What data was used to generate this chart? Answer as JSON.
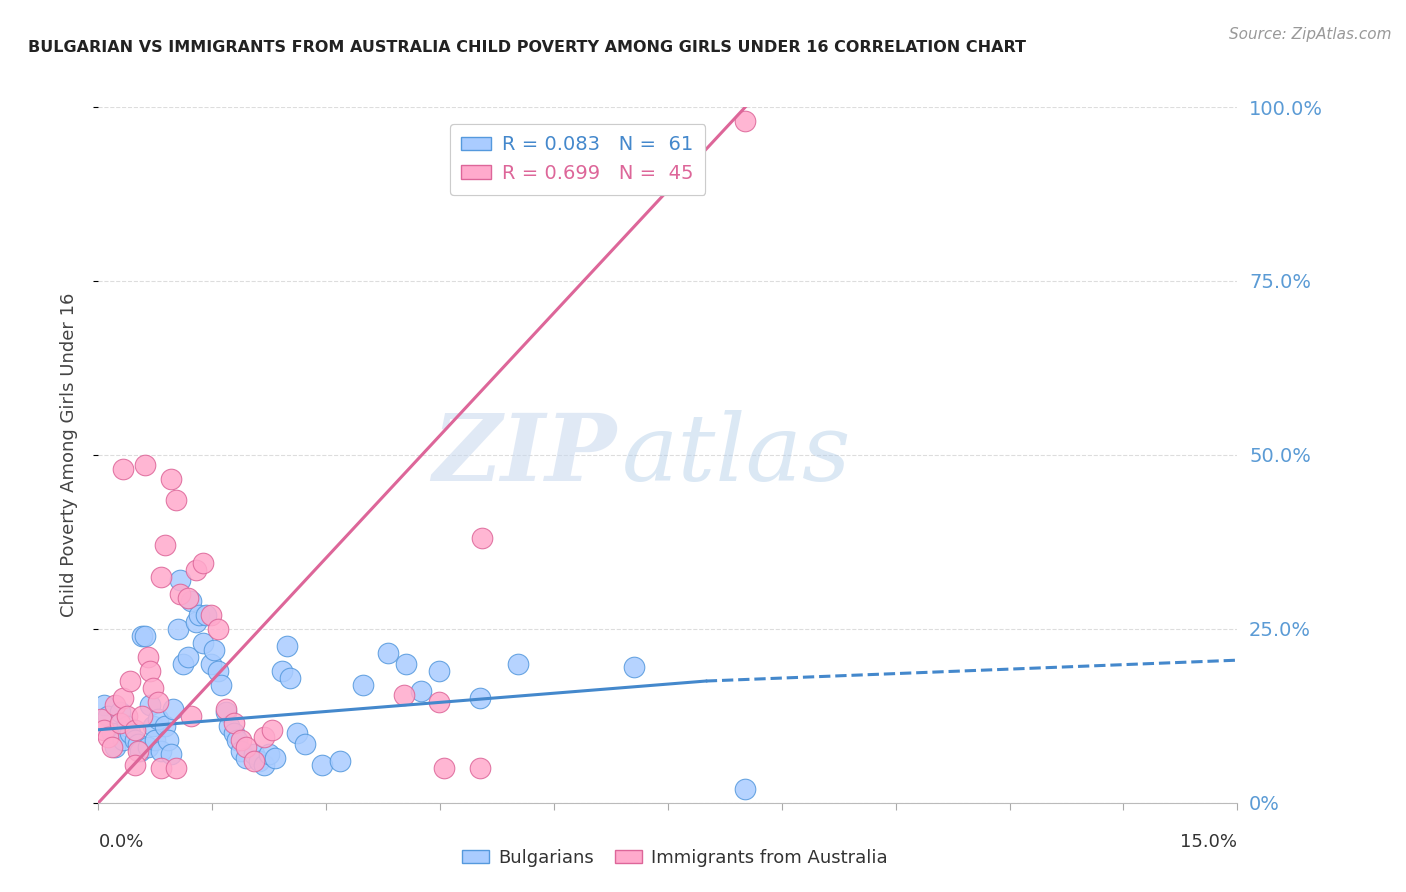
{
  "title": "BULGARIAN VS IMMIGRANTS FROM AUSTRALIA CHILD POVERTY AMONG GIRLS UNDER 16 CORRELATION CHART",
  "source": "Source: ZipAtlas.com",
  "ylabel": "Child Poverty Among Girls Under 16",
  "xlim": [
    0.0,
    15.0
  ],
  "ylim": [
    0.0,
    100.0
  ],
  "yticks": [
    0.0,
    25.0,
    50.0,
    75.0,
    100.0
  ],
  "yticklabels": [
    "0%",
    "25.0%",
    "50.0%",
    "75.0%",
    "100.0%"
  ],
  "xticks": [
    0.0,
    1.5,
    3.0,
    4.5,
    6.0,
    7.5,
    9.0,
    10.5,
    12.0,
    13.5,
    15.0
  ],
  "blue_color": "#aaccff",
  "pink_color": "#ffaacc",
  "blue_edge_color": "#5599dd",
  "pink_edge_color": "#dd6699",
  "blue_line_color": "#4488cc",
  "pink_line_color": "#dd6699",
  "blue_scatter": [
    [
      0.08,
      14.0
    ],
    [
      0.12,
      12.5
    ],
    [
      0.18,
      10.0
    ],
    [
      0.22,
      8.0
    ],
    [
      0.28,
      13.0
    ],
    [
      0.32,
      9.0
    ],
    [
      0.38,
      11.0
    ],
    [
      0.42,
      10.0
    ],
    [
      0.48,
      9.0
    ],
    [
      0.52,
      8.5
    ],
    [
      0.55,
      7.5
    ],
    [
      0.58,
      24.0
    ],
    [
      0.62,
      24.0
    ],
    [
      0.65,
      8.0
    ],
    [
      0.68,
      14.0
    ],
    [
      0.72,
      11.0
    ],
    [
      0.75,
      9.0
    ],
    [
      0.78,
      12.0
    ],
    [
      0.82,
      7.5
    ],
    [
      0.88,
      11.0
    ],
    [
      0.92,
      9.0
    ],
    [
      0.95,
      7.0
    ],
    [
      0.98,
      13.5
    ],
    [
      1.05,
      25.0
    ],
    [
      1.08,
      32.0
    ],
    [
      1.12,
      20.0
    ],
    [
      1.18,
      21.0
    ],
    [
      1.22,
      29.0
    ],
    [
      1.28,
      26.0
    ],
    [
      1.32,
      27.0
    ],
    [
      1.38,
      23.0
    ],
    [
      1.42,
      27.0
    ],
    [
      1.48,
      20.0
    ],
    [
      1.52,
      22.0
    ],
    [
      1.58,
      19.0
    ],
    [
      1.62,
      17.0
    ],
    [
      1.68,
      13.0
    ],
    [
      1.72,
      11.0
    ],
    [
      1.78,
      10.0
    ],
    [
      1.82,
      9.0
    ],
    [
      1.88,
      7.5
    ],
    [
      1.95,
      6.5
    ],
    [
      2.05,
      7.0
    ],
    [
      2.12,
      6.0
    ],
    [
      2.18,
      5.5
    ],
    [
      2.25,
      7.0
    ],
    [
      2.32,
      6.5
    ],
    [
      2.42,
      19.0
    ],
    [
      2.48,
      22.5
    ],
    [
      2.52,
      18.0
    ],
    [
      2.62,
      10.0
    ],
    [
      2.72,
      8.5
    ],
    [
      2.95,
      5.5
    ],
    [
      3.18,
      6.0
    ],
    [
      3.48,
      17.0
    ],
    [
      3.82,
      21.5
    ],
    [
      4.05,
      20.0
    ],
    [
      4.25,
      16.0
    ],
    [
      4.48,
      19.0
    ],
    [
      5.02,
      15.0
    ],
    [
      5.52,
      20.0
    ],
    [
      7.05,
      19.5
    ],
    [
      8.52,
      2.0
    ]
  ],
  "pink_scatter": [
    [
      0.04,
      12.0
    ],
    [
      0.08,
      10.5
    ],
    [
      0.12,
      9.5
    ],
    [
      0.18,
      8.0
    ],
    [
      0.22,
      14.0
    ],
    [
      0.28,
      11.5
    ],
    [
      0.32,
      15.0
    ],
    [
      0.38,
      12.5
    ],
    [
      0.42,
      17.5
    ],
    [
      0.48,
      10.5
    ],
    [
      0.52,
      7.5
    ],
    [
      0.58,
      12.5
    ],
    [
      0.62,
      48.5
    ],
    [
      0.65,
      21.0
    ],
    [
      0.68,
      19.0
    ],
    [
      0.72,
      16.5
    ],
    [
      0.78,
      14.5
    ],
    [
      0.82,
      32.5
    ],
    [
      0.88,
      37.0
    ],
    [
      0.95,
      46.5
    ],
    [
      1.02,
      43.5
    ],
    [
      1.08,
      30.0
    ],
    [
      1.18,
      29.5
    ],
    [
      1.28,
      33.5
    ],
    [
      1.38,
      34.5
    ],
    [
      1.48,
      27.0
    ],
    [
      1.58,
      25.0
    ],
    [
      1.68,
      13.5
    ],
    [
      1.78,
      11.5
    ],
    [
      1.88,
      9.0
    ],
    [
      1.95,
      8.0
    ],
    [
      2.05,
      6.0
    ],
    [
      2.18,
      9.5
    ],
    [
      2.28,
      10.5
    ],
    [
      0.32,
      48.0
    ],
    [
      1.22,
      12.5
    ],
    [
      4.02,
      15.5
    ],
    [
      4.48,
      14.5
    ],
    [
      0.48,
      5.5
    ],
    [
      0.82,
      5.0
    ],
    [
      1.02,
      5.0
    ],
    [
      5.02,
      5.0
    ],
    [
      5.05,
      38.0
    ],
    [
      8.52,
      98.0
    ],
    [
      4.55,
      5.0
    ]
  ],
  "blue_line_solid": {
    "x0": 0.0,
    "y0": 10.5,
    "x1": 8.0,
    "y1": 17.5
  },
  "blue_line_dashed": {
    "x0": 8.0,
    "y0": 17.5,
    "x1": 15.0,
    "y1": 20.5
  },
  "pink_line": {
    "x0": 0.0,
    "y0": 0.0,
    "x1": 8.52,
    "y1": 100.0
  },
  "watermark_zip": "ZIP",
  "watermark_atlas": "atlas",
  "background_color": "#ffffff",
  "grid_color": "#dddddd",
  "right_axis_color": "#5b9bd5",
  "title_color": "#222222",
  "source_color": "#999999",
  "ylabel_color": "#444444"
}
